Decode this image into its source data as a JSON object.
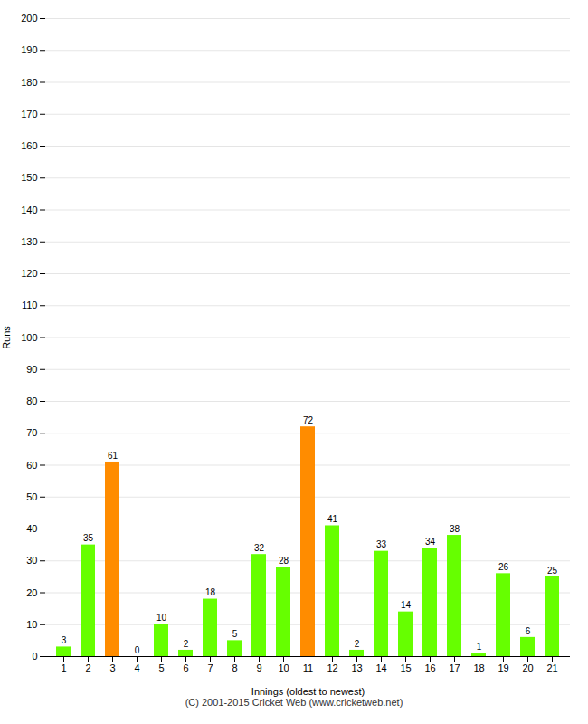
{
  "chart_data": {
    "type": "bar",
    "xlabel": "Innings (oldest to newest)",
    "ylabel": "Runs",
    "categories": [
      "1",
      "2",
      "3",
      "4",
      "5",
      "6",
      "7",
      "8",
      "9",
      "10",
      "11",
      "12",
      "13",
      "14",
      "15",
      "16",
      "17",
      "18",
      "19",
      "20",
      "21"
    ],
    "values": [
      3,
      35,
      61,
      0,
      10,
      2,
      18,
      5,
      32,
      28,
      72,
      41,
      2,
      33,
      14,
      34,
      38,
      1,
      26,
      6,
      25
    ],
    "colors": [
      "#66ff00",
      "#66ff00",
      "#ff8c00",
      "#66ff00",
      "#66ff00",
      "#66ff00",
      "#66ff00",
      "#66ff00",
      "#66ff00",
      "#66ff00",
      "#ff8c00",
      "#66ff00",
      "#66ff00",
      "#66ff00",
      "#66ff00",
      "#66ff00",
      "#66ff00",
      "#66ff00",
      "#66ff00",
      "#66ff00",
      "#66ff00"
    ],
    "ylim": [
      0,
      200
    ],
    "yticks": [
      0,
      10,
      20,
      30,
      40,
      50,
      60,
      70,
      80,
      90,
      100,
      110,
      120,
      130,
      140,
      150,
      160,
      170,
      180,
      190,
      200
    ],
    "grid": true,
    "data_labels": true,
    "caption": "(C) 2001-2015 Cricket Web (www.cricketweb.net)"
  }
}
